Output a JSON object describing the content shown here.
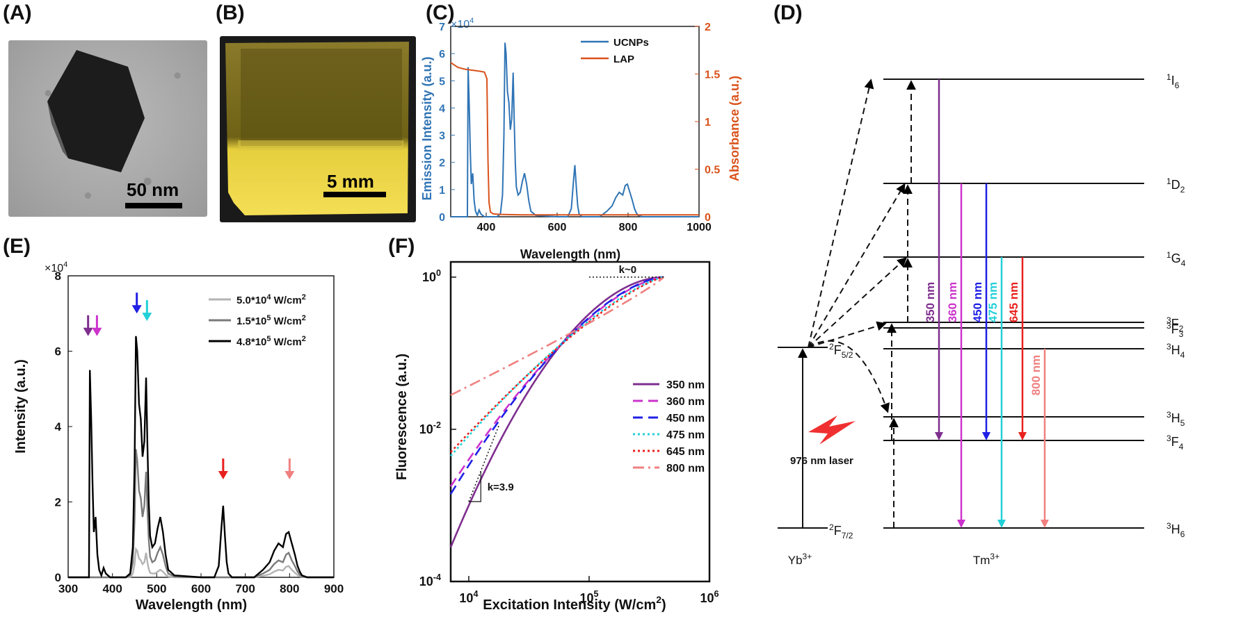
{
  "panels": {
    "a": "(A)",
    "b": "(B)",
    "c": "(C)",
    "d": "(D)",
    "e": "(E)",
    "f": "(F)"
  },
  "photos": {
    "tem_scale": "50 nm",
    "cuvette_scale": "5 mm"
  },
  "chart_data": [
    {
      "id": "C",
      "type": "line",
      "xlabel": "Wavelength (nm)",
      "ylabel": "Emission Intensity (a.u.)",
      "y2label": "Absorbance (a.u.)",
      "yexp": "×10",
      "yexp_power": "4",
      "xlim": [
        300,
        1000
      ],
      "ylim": [
        0,
        7
      ],
      "y2lim": [
        0,
        2
      ],
      "xticks": [
        "400",
        "600",
        "800",
        "1000"
      ],
      "yticks": [
        "0",
        "1",
        "2",
        "3",
        "4",
        "5",
        "6",
        "7"
      ],
      "y2ticks": [
        "0",
        "0.5",
        "1",
        "1.5",
        "2"
      ],
      "colors": {
        "ucnp": "#2f74b5",
        "lap": "#d9521b"
      },
      "series": [
        {
          "name": "UCNPs",
          "axis": "left",
          "x": [
            300,
            347,
            349,
            352,
            355,
            358,
            362,
            366,
            370,
            375,
            380,
            385,
            390,
            395,
            400,
            430,
            440,
            446,
            450,
            453,
            456,
            460,
            464,
            468,
            472,
            476,
            479,
            482,
            485,
            490,
            496,
            502,
            508,
            514,
            520,
            526,
            540,
            600,
            630,
            640,
            646,
            650,
            654,
            658,
            662,
            670,
            690,
            720,
            740,
            755,
            765,
            775,
            785,
            792,
            798,
            805,
            812,
            818,
            823,
            828,
            840,
            1000
          ],
          "values": [
            0,
            0,
            5.5,
            4.2,
            2.5,
            1.2,
            1.6,
            0.6,
            0.2,
            0.05,
            0.25,
            0.1,
            0.05,
            0,
            0,
            0,
            0.1,
            0.8,
            3.0,
            6.4,
            6.0,
            4.6,
            4.2,
            3.2,
            3.6,
            5.3,
            3.5,
            2.0,
            1.1,
            0.8,
            0.9,
            1.3,
            1.6,
            1.2,
            0.6,
            0.2,
            0.05,
            0,
            0,
            0.3,
            1.3,
            1.9,
            1.1,
            0.4,
            0.1,
            0,
            0,
            0,
            0.2,
            0.4,
            0.7,
            0.9,
            0.8,
            1.15,
            1.2,
            0.9,
            0.6,
            0.3,
            0.15,
            0.05,
            0,
            0
          ]
        },
        {
          "name": "LAP",
          "axis": "right",
          "x": [
            300,
            320,
            340,
            360,
            380,
            395,
            402,
            405,
            408,
            412,
            420,
            440,
            500,
            600,
            700,
            800,
            900,
            1000
          ],
          "values": [
            1.62,
            1.57,
            1.55,
            1.54,
            1.53,
            1.52,
            1.45,
            0.6,
            0.15,
            0.05,
            0.03,
            0.025,
            0.02,
            0.02,
            0.02,
            0.02,
            0.02,
            0.02
          ]
        }
      ]
    },
    {
      "id": "E",
      "type": "line",
      "xlabel": "Wavelength (nm)",
      "ylabel": "Intensity (a.u.)",
      "yexp": "×10",
      "yexp_power": "4",
      "xlim": [
        300,
        900
      ],
      "ylim": [
        0,
        8
      ],
      "xticks": [
        "300",
        "400",
        "500",
        "600",
        "700",
        "800",
        "900"
      ],
      "yticks": [
        "0",
        "2",
        "4",
        "6",
        "8"
      ],
      "legend": [
        {
          "name": "5.0*10",
          "power": "4",
          "unit": " W/cm",
          "unit_power": "2",
          "color": "#b3b3b3"
        },
        {
          "name": "1.5*10",
          "power": "5",
          "unit": " W/cm",
          "unit_power": "2",
          "color": "#7a7a7a"
        },
        {
          "name": "4.8*10",
          "power": "5",
          "unit": " W/cm",
          "unit_power": "2",
          "color": "#000000"
        }
      ],
      "x": [
        300,
        347,
        349,
        352,
        355,
        358,
        362,
        366,
        370,
        375,
        380,
        385,
        390,
        395,
        400,
        430,
        440,
        446,
        450,
        453,
        456,
        460,
        464,
        468,
        472,
        476,
        479,
        482,
        485,
        490,
        496,
        502,
        508,
        514,
        520,
        526,
        540,
        600,
        630,
        640,
        646,
        650,
        654,
        658,
        662,
        670,
        690,
        720,
        740,
        755,
        765,
        775,
        785,
        792,
        798,
        805,
        812,
        818,
        823,
        828,
        840,
        900
      ],
      "series": [
        {
          "name": "4.8e5",
          "color": "#000000",
          "values": [
            0,
            0,
            5.5,
            4.2,
            2.5,
            1.2,
            1.6,
            0.6,
            0.2,
            0.05,
            0.25,
            0.1,
            0.05,
            0,
            0,
            0,
            0.1,
            0.8,
            3.0,
            6.4,
            6.0,
            4.6,
            4.2,
            3.2,
            3.6,
            5.3,
            3.5,
            2.0,
            1.1,
            0.8,
            0.9,
            1.3,
            1.6,
            1.2,
            0.6,
            0.2,
            0.05,
            0,
            0,
            0.3,
            1.3,
            1.9,
            1.1,
            0.4,
            0.1,
            0,
            0,
            0,
            0.2,
            0.4,
            0.7,
            0.9,
            0.8,
            1.15,
            1.2,
            0.9,
            0.6,
            0.3,
            0.15,
            0.05,
            0,
            0
          ]
        },
        {
          "name": "1.5e5",
          "color": "#7a7a7a",
          "values": [
            0,
            0,
            0,
            0,
            0,
            0,
            0,
            0,
            0,
            0,
            0,
            0,
            0,
            0,
            0,
            0,
            0.05,
            0.4,
            1.5,
            3.4,
            3.1,
            2.3,
            2.1,
            1.6,
            1.9,
            2.8,
            1.8,
            1.0,
            0.55,
            0.4,
            0.45,
            0.65,
            0.8,
            0.6,
            0.3,
            0.1,
            0.02,
            0,
            0,
            0,
            0,
            0,
            0,
            0,
            0,
            0,
            0,
            0,
            0.1,
            0.2,
            0.35,
            0.45,
            0.4,
            0.6,
            0.65,
            0.45,
            0.3,
            0.15,
            0.07,
            0.02,
            0,
            0
          ]
        },
        {
          "name": "5.0e4",
          "color": "#b3b3b3",
          "values": [
            0,
            0,
            0,
            0,
            0,
            0,
            0,
            0,
            0,
            0,
            0,
            0,
            0,
            0,
            0,
            0,
            0,
            0.1,
            0.35,
            0.75,
            0.7,
            0.5,
            0.45,
            0.35,
            0.4,
            0.65,
            0.4,
            0.22,
            0.12,
            0.1,
            0.1,
            0.15,
            0.2,
            0.15,
            0.07,
            0.02,
            0,
            0,
            0,
            0,
            0,
            0,
            0,
            0,
            0,
            0,
            0,
            0,
            0.04,
            0.08,
            0.15,
            0.2,
            0.18,
            0.28,
            0.3,
            0.2,
            0.12,
            0.06,
            0.03,
            0.01,
            0,
            0
          ]
        }
      ],
      "arrows": [
        {
          "x": 345,
          "color": "#7e2f8e"
        },
        {
          "x": 365,
          "color": "#cc33cc"
        },
        {
          "x": 455,
          "color": "#1f1fe6"
        },
        {
          "x": 478,
          "color": "#22d0d8"
        },
        {
          "x": 650,
          "color": "#e8201d"
        },
        {
          "x": 800,
          "color": "#f08080"
        }
      ]
    },
    {
      "id": "F",
      "type": "line",
      "scale": "log-log",
      "xlabel": "Excitation Intensity (W/cm",
      "xlabel_power": "2",
      "xlabel_close": ")",
      "ylabel": "Fluorescence (a.u.)",
      "xlim_log10": [
        3.85,
        6
      ],
      "ylim_log10": [
        -4,
        0.2
      ],
      "xticks": [
        {
          "base": "10",
          "exp": "4",
          "v": 4
        },
        {
          "base": "10",
          "exp": "5",
          "v": 5
        },
        {
          "base": "10",
          "exp": "6",
          "v": 6
        }
      ],
      "yticks": [
        {
          "base": "10",
          "exp": "-4",
          "v": -4
        },
        {
          "base": "10",
          "exp": "-2",
          "v": -2
        },
        {
          "base": "10",
          "exp": "0",
          "v": 0
        }
      ],
      "annotations": {
        "slope_low": "k=3.9",
        "slope_high": "k~0"
      },
      "series": [
        {
          "name": "350 nm",
          "color": "#7e2f8e",
          "dash": "",
          "y_at_start": -3.55,
          "steep": 1.9
        },
        {
          "name": "360 nm",
          "color": "#cc33cc",
          "dash": "14,8",
          "y_at_start": -2.75,
          "steep": 1.55
        },
        {
          "name": "450 nm",
          "color": "#1f1fe6",
          "dash": "14,8",
          "y_at_start": -2.85,
          "steep": 1.6
        },
        {
          "name": "475 nm",
          "color": "#22d0d8",
          "dash": "3,4",
          "y_at_start": -2.35,
          "steep": 1.35
        },
        {
          "name": "645 nm",
          "color": "#e8201d",
          "dash": "3,4",
          "y_at_start": -2.3,
          "steep": 1.3
        },
        {
          "name": "800 nm",
          "color": "#f08080",
          "dash": "16,6,3,6",
          "y_at_start": -1.55,
          "steep": 0.9
        }
      ]
    }
  ],
  "energy_diagram": {
    "yb_label": "Yb",
    "yb_charge": "3+",
    "tm_label": "Tm",
    "tm_charge": "3+",
    "laser_label": "976 nm laser",
    "levels": [
      {
        "sup": "1",
        "name": "I",
        "sub": "6"
      },
      {
        "sup": "1",
        "name": "D",
        "sub": "2"
      },
      {
        "sup": "1",
        "name": "G",
        "sub": "4"
      },
      {
        "sup": "3",
        "name": "F",
        "sub": "2"
      },
      {
        "sup": "3",
        "name": "F",
        "sub": "3"
      },
      {
        "sup": "3",
        "name": "H",
        "sub": "4"
      },
      {
        "sup": "3",
        "name": "H",
        "sub": "5"
      },
      {
        "sup": "3",
        "name": "F",
        "sub": "4"
      },
      {
        "sup": "3",
        "name": "H",
        "sub": "6"
      }
    ],
    "yb_levels": [
      {
        "sup": "2",
        "name": "F",
        "sub": "5/2"
      },
      {
        "sup": "2",
        "name": "F",
        "sub": "7/2"
      }
    ],
    "emissions": [
      {
        "label": "350 nm",
        "color": "#7e2f8e"
      },
      {
        "label": "360 nm",
        "color": "#cc33cc"
      },
      {
        "label": "450 nm",
        "color": "#1f1fe6"
      },
      {
        "label": "475 nm",
        "color": "#22d0d8"
      },
      {
        "label": "645 nm",
        "color": "#e8201d"
      },
      {
        "label": "800 nm",
        "color": "#f08080"
      }
    ]
  }
}
